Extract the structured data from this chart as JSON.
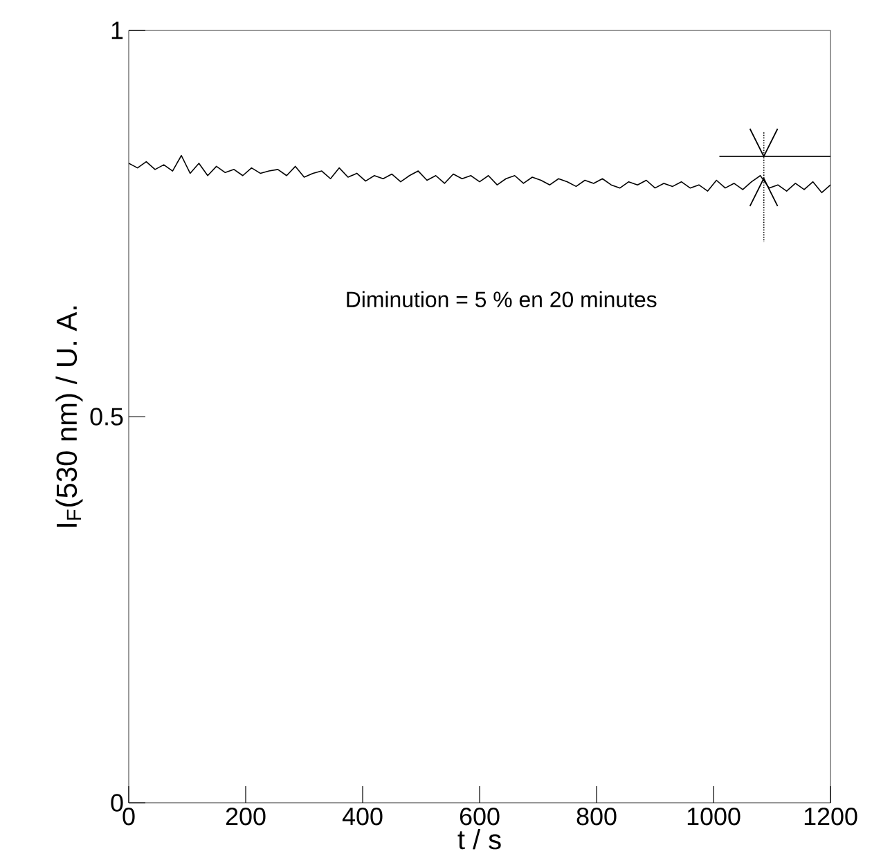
{
  "chart_data": {
    "type": "line",
    "xlabel": "t / s",
    "ylabel": "I$_{F}$(530 nm) / U. A.",
    "xlim": [
      0,
      1200
    ],
    "ylim": [
      0,
      1
    ],
    "xticks": [
      0,
      200,
      400,
      600,
      800,
      1000,
      1200
    ],
    "yticks": [
      0,
      0.5,
      1
    ],
    "grid": false,
    "marker": "none",
    "annotations": [
      "Diminution = 5 % en 20 minutes"
    ],
    "series": [
      {
        "color": "#000000",
        "line_style": "solid",
        "x": [
          0,
          15,
          30,
          45,
          60,
          75,
          90,
          105,
          120,
          135,
          150,
          165,
          180,
          195,
          210,
          225,
          240,
          255,
          270,
          285,
          300,
          315,
          330,
          345,
          360,
          375,
          390,
          405,
          420,
          435,
          450,
          465,
          480,
          495,
          510,
          525,
          540,
          555,
          570,
          585,
          600,
          615,
          630,
          645,
          660,
          675,
          690,
          705,
          720,
          735,
          750,
          765,
          780,
          795,
          810,
          825,
          840,
          855,
          870,
          885,
          900,
          915,
          930,
          945,
          960,
          975,
          990,
          1005,
          1020,
          1035,
          1050,
          1065,
          1080,
          1095,
          1110,
          1125,
          1140,
          1155,
          1170,
          1185,
          1200
        ],
        "values": [
          0.828,
          0.822,
          0.83,
          0.82,
          0.826,
          0.818,
          0.838,
          0.815,
          0.828,
          0.812,
          0.824,
          0.816,
          0.82,
          0.812,
          0.822,
          0.815,
          0.818,
          0.82,
          0.812,
          0.824,
          0.81,
          0.815,
          0.818,
          0.808,
          0.822,
          0.81,
          0.815,
          0.805,
          0.812,
          0.808,
          0.814,
          0.804,
          0.812,
          0.818,
          0.806,
          0.812,
          0.802,
          0.814,
          0.808,
          0.812,
          0.804,
          0.812,
          0.8,
          0.808,
          0.812,
          0.802,
          0.81,
          0.806,
          0.8,
          0.808,
          0.804,
          0.798,
          0.806,
          0.802,
          0.808,
          0.8,
          0.796,
          0.804,
          0.8,
          0.806,
          0.796,
          0.802,
          0.798,
          0.804,
          0.796,
          0.8,
          0.792,
          0.806,
          0.796,
          0.802,
          0.794,
          0.804,
          0.812,
          0.796,
          0.8,
          0.792,
          0.802,
          0.794,
          0.804,
          0.79,
          0.8
        ]
      },
      {
        "color": "#000000",
        "line_style": "solid",
        "x": [
          1010,
          1200
        ],
        "values": [
          0.837,
          0.837
        ]
      },
      {
        "color": "#000000",
        "line_style": "dotted",
        "x": [
          1086,
          1086
        ],
        "values": [
          0.868,
          0.726
        ]
      }
    ]
  }
}
